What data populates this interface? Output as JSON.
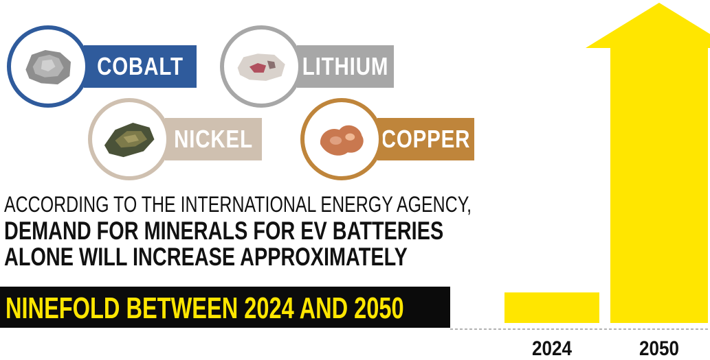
{
  "minerals": [
    {
      "name": "COBALT",
      "color": "#2f5b9c",
      "icon": "cobalt-ore-icon"
    },
    {
      "name": "LITHIUM",
      "color": "#a7a7a7",
      "icon": "lithium-ore-icon"
    },
    {
      "name": "NICKEL",
      "color": "#cfc0b0",
      "icon": "nickel-ore-icon"
    },
    {
      "name": "COPPER",
      "color": "#bf853b",
      "icon": "copper-ore-icon"
    }
  ],
  "headline": {
    "line1": "ACCORDING TO THE INTERNATIONAL ENERGY AGENCY,",
    "line2": "DEMAND FOR MINERALS FOR EV BATTERIES",
    "line3": "ALONE WILL INCREASE APPROXIMATELY",
    "highlight": "NINEFOLD BETWEEN 2024 AND 2050"
  },
  "colors": {
    "accent_yellow": "#ffe600",
    "highlight_bg": "#0b0b0b",
    "baseline": "#999999"
  },
  "chart_data": {
    "type": "bar",
    "categories": [
      "2024",
      "2050"
    ],
    "values": [
      1,
      9
    ],
    "ylim": [
      0,
      9
    ],
    "grid": false,
    "title": "",
    "xlabel": "",
    "ylabel": ""
  }
}
